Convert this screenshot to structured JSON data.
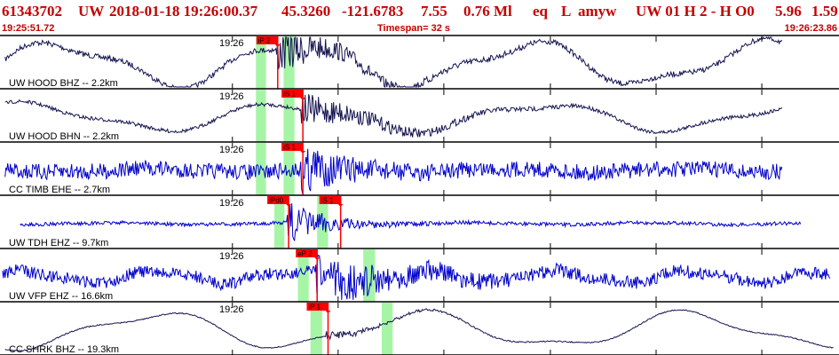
{
  "header": {
    "event_id": "61343702",
    "network": "UW",
    "datetime": "2018-01-18 19:26:00.37",
    "lat": "45.3260",
    "lon": "-121.6783",
    "depth": "7.55",
    "magnitude": "0.76 Ml",
    "event_type": "eq",
    "review": "L",
    "analyst": "amyw",
    "quality": "UW 01  H  2  -  H O0",
    "v1": "5.96",
    "v2": "1.59"
  },
  "subheader": {
    "start_time": "19:25:51.72",
    "timespan": "Timespan=  32 s",
    "end_time": "19:26:23.86"
  },
  "colors": {
    "header_text": "#c40000",
    "pick_flag": "#ff0000",
    "pick_window": "#a6f5a6",
    "trace_blue": "#0000cc",
    "trace_navy": "#141450",
    "separator": "#000000"
  },
  "traces": [
    {
      "label": "UW HOOD BHZ -- 2.2km",
      "time_label": "19:26",
      "color_key": "trace_navy",
      "picks": [
        {
          "label": "iP 2",
          "t": 0.331
        }
      ],
      "windows": [
        [
          0.305,
          0.317
        ],
        [
          0.338,
          0.351
        ]
      ]
    },
    {
      "label": "UW HOOD BHN -- 2.2km",
      "time_label": "19:26",
      "color_key": "trace_navy",
      "picks": [
        {
          "label": "iS 1",
          "t": 0.361
        }
      ],
      "windows": [
        [
          0.305,
          0.317
        ],
        [
          0.338,
          0.351
        ]
      ]
    },
    {
      "label": "CC TIMB EHE -- 2.7km",
      "time_label": "19:26",
      "color_key": "trace_blue",
      "picks": [
        {
          "label": "iS 1",
          "t": 0.361
        }
      ],
      "windows": [
        [
          0.305,
          0.317
        ],
        [
          0.338,
          0.351
        ]
      ]
    },
    {
      "label": "UW TDH EHZ -- 9.7km",
      "time_label": "19:26",
      "color_key": "trace_blue",
      "picks": [
        {
          "label": "iPd0",
          "t": 0.344
        },
        {
          "label": "iS 1",
          "t": 0.406
        }
      ],
      "windows": [
        [
          0.327,
          0.339
        ],
        [
          0.378,
          0.391
        ]
      ]
    },
    {
      "label": "UW VFP EHZ -- 16.6km",
      "time_label": "19:26",
      "color_key": "trace_blue",
      "picks": [
        {
          "label": "eP 2",
          "t": 0.378
        }
      ],
      "windows": [
        [
          0.355,
          0.368
        ],
        [
          0.433,
          0.447
        ]
      ]
    },
    {
      "label": "CC SHRK BHZ -- 19.3km",
      "time_label": "19:26",
      "color_key": "trace_navy",
      "picks": [
        {
          "label": "iP 1",
          "t": 0.391
        }
      ],
      "windows": [
        [
          0.37,
          0.384
        ],
        [
          0.455,
          0.468
        ]
      ]
    }
  ]
}
